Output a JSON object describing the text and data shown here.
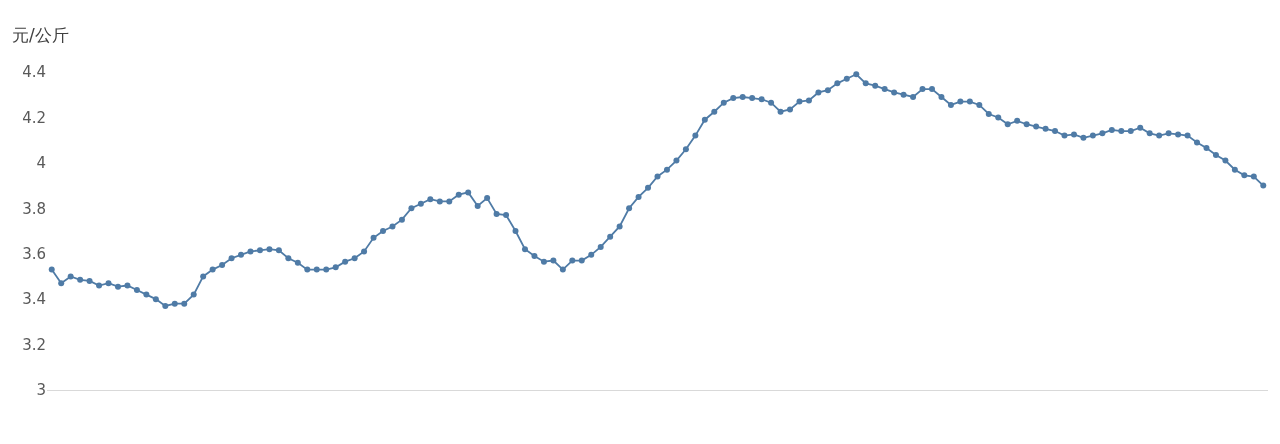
{
  "chart_data": {
    "type": "line",
    "ylabel": "元/公斤",
    "categories": [
      null,
      null,
      null,
      null,
      null,
      null,
      null,
      null,
      null,
      null,
      null,
      null,
      null,
      null,
      null,
      null,
      null,
      null,
      null,
      null,
      null,
      null,
      null,
      null,
      null,
      null,
      null,
      null,
      null,
      null,
      null,
      null,
      null,
      null,
      null,
      null,
      null,
      null,
      null,
      null,
      null,
      null,
      null,
      null,
      null,
      null,
      null,
      null,
      null,
      null,
      null,
      null,
      null,
      null,
      null,
      null,
      null,
      null,
      null,
      null,
      null,
      null,
      null,
      null,
      null,
      null,
      null,
      null,
      null,
      null,
      null,
      null,
      null,
      null,
      null,
      null,
      null,
      null,
      null,
      null,
      null,
      null,
      null,
      null,
      null,
      null,
      null,
      null,
      null,
      null,
      null,
      null,
      null,
      null,
      null,
      null,
      null,
      null,
      null,
      null,
      null,
      null,
      null,
      null,
      null,
      null,
      null,
      null,
      null,
      null,
      null,
      null,
      null,
      null,
      null,
      null,
      null,
      null,
      null,
      null,
      null,
      null,
      null,
      null,
      null,
      null,
      null,
      null,
      null
    ],
    "series": [
      {
        "color": "#4f7ba6",
        "values": [
          3.53,
          3.47,
          3.5,
          3.485,
          3.48,
          3.46,
          3.47,
          3.455,
          3.46,
          3.44,
          3.42,
          3.4,
          3.37,
          3.38,
          3.38,
          3.42,
          3.5,
          3.53,
          3.55,
          3.58,
          3.595,
          3.61,
          3.615,
          3.62,
          3.615,
          3.58,
          3.56,
          3.53,
          3.53,
          3.53,
          3.54,
          3.565,
          3.58,
          3.61,
          3.67,
          3.7,
          3.72,
          3.75,
          3.8,
          3.82,
          3.84,
          3.83,
          3.83,
          3.86,
          3.87,
          3.81,
          3.845,
          3.775,
          3.77,
          3.7,
          3.62,
          3.59,
          3.565,
          3.57,
          3.53,
          3.57,
          3.57,
          3.595,
          3.63,
          3.675,
          3.72,
          3.8,
          3.85,
          3.89,
          3.94,
          3.97,
          4.01,
          4.06,
          4.12,
          4.19,
          4.225,
          4.265,
          4.285,
          4.29,
          4.285,
          4.28,
          4.265,
          4.225,
          4.235,
          4.27,
          4.275,
          4.31,
          4.32,
          4.35,
          4.37,
          4.39,
          4.35,
          4.34,
          4.325,
          4.31,
          4.3,
          4.29,
          4.325,
          4.325,
          4.29,
          4.255,
          4.27,
          4.27,
          4.255,
          4.215,
          4.2,
          4.17,
          4.185,
          4.17,
          4.16,
          4.15,
          4.14,
          4.12,
          4.125,
          4.11,
          4.12,
          4.13,
          4.145,
          4.14,
          4.14,
          4.155,
          4.13,
          4.12,
          4.13,
          4.125,
          4.12,
          4.09,
          4.065,
          4.035,
          4.01,
          3.97,
          3.945,
          3.94,
          3.9
        ]
      }
    ],
    "ylim": [
      3,
      4.4
    ],
    "yticks": [
      3,
      3.2,
      3.4,
      3.6,
      3.8,
      4,
      4.2,
      4.4
    ],
    "marker": "circle",
    "line_style": "solid",
    "grid": false,
    "legend": false
  }
}
